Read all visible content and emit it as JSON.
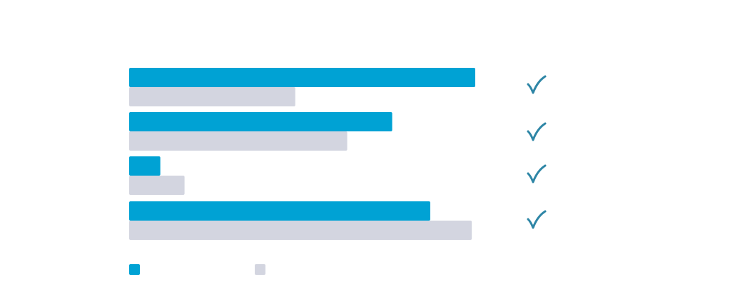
{
  "colors": {
    "series_a": "#00a2d4",
    "series_b": "#d3d5e0",
    "check": "#2e86a6",
    "background": "#ffffff"
  },
  "icons": {
    "row_marker": "check-mark-icon"
  },
  "chart_data": {
    "type": "bar",
    "orientation": "horizontal",
    "categories": [
      "",
      "",
      "",
      ""
    ],
    "series": [
      {
        "values": [
          100,
          76,
          9,
          87
        ]
      },
      {
        "values": [
          48,
          63,
          16,
          99
        ]
      }
    ],
    "xlim": [
      0,
      100
    ],
    "grid": false,
    "legend": "bottom-left",
    "row_markers": [
      "check",
      "check",
      "check",
      "check"
    ]
  }
}
